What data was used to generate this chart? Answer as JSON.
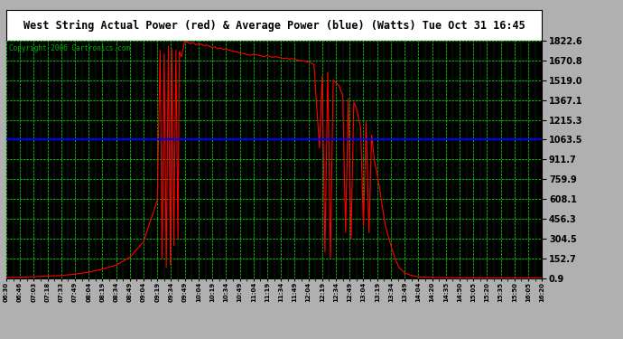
{
  "title": "West String Actual Power (red) & Average Power (blue) (Watts) Tue Oct 31 16:45",
  "copyright": "Copyright 2006 Cartronics.com",
  "fig_bg_color": "#b0b0b0",
  "plot_bg_color": "#000000",
  "title_bg_color": "#ffffff",
  "y_ticks": [
    0.9,
    152.7,
    304.5,
    456.3,
    608.1,
    759.9,
    911.7,
    1063.5,
    1215.3,
    1367.1,
    1519.0,
    1670.8,
    1822.6
  ],
  "ylim": [
    0.9,
    1822.6
  ],
  "average_power": 1063.5,
  "x_labels": [
    "06:30",
    "06:46",
    "07:03",
    "07:18",
    "07:33",
    "07:49",
    "08:04",
    "08:19",
    "08:34",
    "08:49",
    "09:04",
    "09:19",
    "09:34",
    "09:49",
    "10:04",
    "10:19",
    "10:34",
    "10:49",
    "11:04",
    "11:19",
    "11:34",
    "11:49",
    "12:04",
    "12:19",
    "12:34",
    "12:49",
    "13:04",
    "13:19",
    "13:34",
    "13:49",
    "14:04",
    "14:20",
    "14:35",
    "14:50",
    "15:05",
    "15:20",
    "15:35",
    "15:50",
    "16:05",
    "16:20"
  ],
  "red_line_color": "#ff0000",
  "blue_line_color": "#0000ff",
  "grid_color": "#00ff00",
  "copyright_color": "#00aa00",
  "power_data": [
    [
      0,
      5.0
    ],
    [
      1,
      7.0
    ],
    [
      2,
      10.0
    ],
    [
      3,
      15.0
    ],
    [
      4,
      20.0
    ],
    [
      5,
      30.0
    ],
    [
      6,
      45.0
    ],
    [
      7,
      70.0
    ],
    [
      8,
      100.0
    ],
    [
      9,
      160.0
    ],
    [
      10,
      280.0
    ],
    [
      11,
      600.0
    ],
    [
      11.2,
      1750.0
    ],
    [
      11.35,
      150.0
    ],
    [
      11.5,
      1720.0
    ],
    [
      11.65,
      80.0
    ],
    [
      11.8,
      1780.0
    ],
    [
      11.95,
      100.0
    ],
    [
      12.05,
      1760.0
    ],
    [
      12.2,
      250.0
    ],
    [
      12.35,
      1750.0
    ],
    [
      12.5,
      300.0
    ],
    [
      12.6,
      1740.0
    ],
    [
      12.75,
      1700.0
    ],
    [
      13.0,
      1820.0
    ],
    [
      13.2,
      1810.0
    ],
    [
      13.4,
      1800.0
    ],
    [
      13.6,
      1810.0
    ],
    [
      13.8,
      1790.0
    ],
    [
      14.0,
      1800.0
    ],
    [
      14.2,
      1795.0
    ],
    [
      14.4,
      1785.0
    ],
    [
      14.6,
      1790.0
    ],
    [
      14.8,
      1780.0
    ],
    [
      15.0,
      1770.0
    ],
    [
      15.2,
      1775.0
    ],
    [
      15.4,
      1760.0
    ],
    [
      15.6,
      1765.0
    ],
    [
      15.8,
      1755.0
    ],
    [
      16.0,
      1760.0
    ],
    [
      16.2,
      1750.0
    ],
    [
      16.4,
      1745.0
    ],
    [
      16.6,
      1740.0
    ],
    [
      16.8,
      1735.0
    ],
    [
      17.0,
      1730.0
    ],
    [
      17.2,
      1725.0
    ],
    [
      17.4,
      1720.0
    ],
    [
      17.6,
      1715.0
    ],
    [
      17.8,
      1710.0
    ],
    [
      18.0,
      1720.0
    ],
    [
      18.2,
      1715.0
    ],
    [
      18.4,
      1710.0
    ],
    [
      18.6,
      1705.0
    ],
    [
      18.8,
      1700.0
    ],
    [
      19.0,
      1710.0
    ],
    [
      19.2,
      1700.0
    ],
    [
      19.4,
      1695.0
    ],
    [
      19.6,
      1700.0
    ],
    [
      19.8,
      1695.0
    ],
    [
      20.0,
      1690.0
    ],
    [
      20.2,
      1685.0
    ],
    [
      20.4,
      1690.0
    ],
    [
      20.6,
      1680.0
    ],
    [
      20.8,
      1685.0
    ],
    [
      21.0,
      1680.0
    ],
    [
      21.2,
      1675.0
    ],
    [
      21.4,
      1670.0
    ],
    [
      21.6,
      1668.0
    ],
    [
      22.0,
      1660.0
    ],
    [
      22.4,
      1640.0
    ],
    [
      22.8,
      1000.0
    ],
    [
      23.0,
      1550.0
    ],
    [
      23.2,
      200.0
    ],
    [
      23.4,
      1580.0
    ],
    [
      23.6,
      150.0
    ],
    [
      23.8,
      1520.0
    ],
    [
      24.0,
      1500.0
    ],
    [
      24.2,
      1480.0
    ],
    [
      24.5,
      1400.0
    ],
    [
      24.7,
      350.0
    ],
    [
      24.9,
      1380.0
    ],
    [
      25.1,
      300.0
    ],
    [
      25.3,
      1350.0
    ],
    [
      25.5,
      1300.0
    ],
    [
      25.8,
      1150.0
    ],
    [
      26.0,
      400.0
    ],
    [
      26.2,
      1200.0
    ],
    [
      26.4,
      350.0
    ],
    [
      26.6,
      1100.0
    ],
    [
      26.8,
      900.0
    ],
    [
      27.0,
      800.0
    ],
    [
      27.3,
      600.0
    ],
    [
      27.6,
      400.0
    ],
    [
      28.0,
      250.0
    ],
    [
      28.3,
      150.0
    ],
    [
      28.6,
      80.0
    ],
    [
      29.0,
      40.0
    ],
    [
      29.5,
      20.0
    ],
    [
      30.0,
      10.0
    ],
    [
      31.0,
      5.0
    ],
    [
      32.0,
      3.0
    ],
    [
      33.0,
      2.0
    ],
    [
      34.0,
      1.5
    ],
    [
      35.0,
      1.0
    ],
    [
      36.0,
      0.9
    ],
    [
      37.0,
      0.9
    ],
    [
      38.0,
      0.9
    ],
    [
      39.0,
      0.9
    ]
  ]
}
